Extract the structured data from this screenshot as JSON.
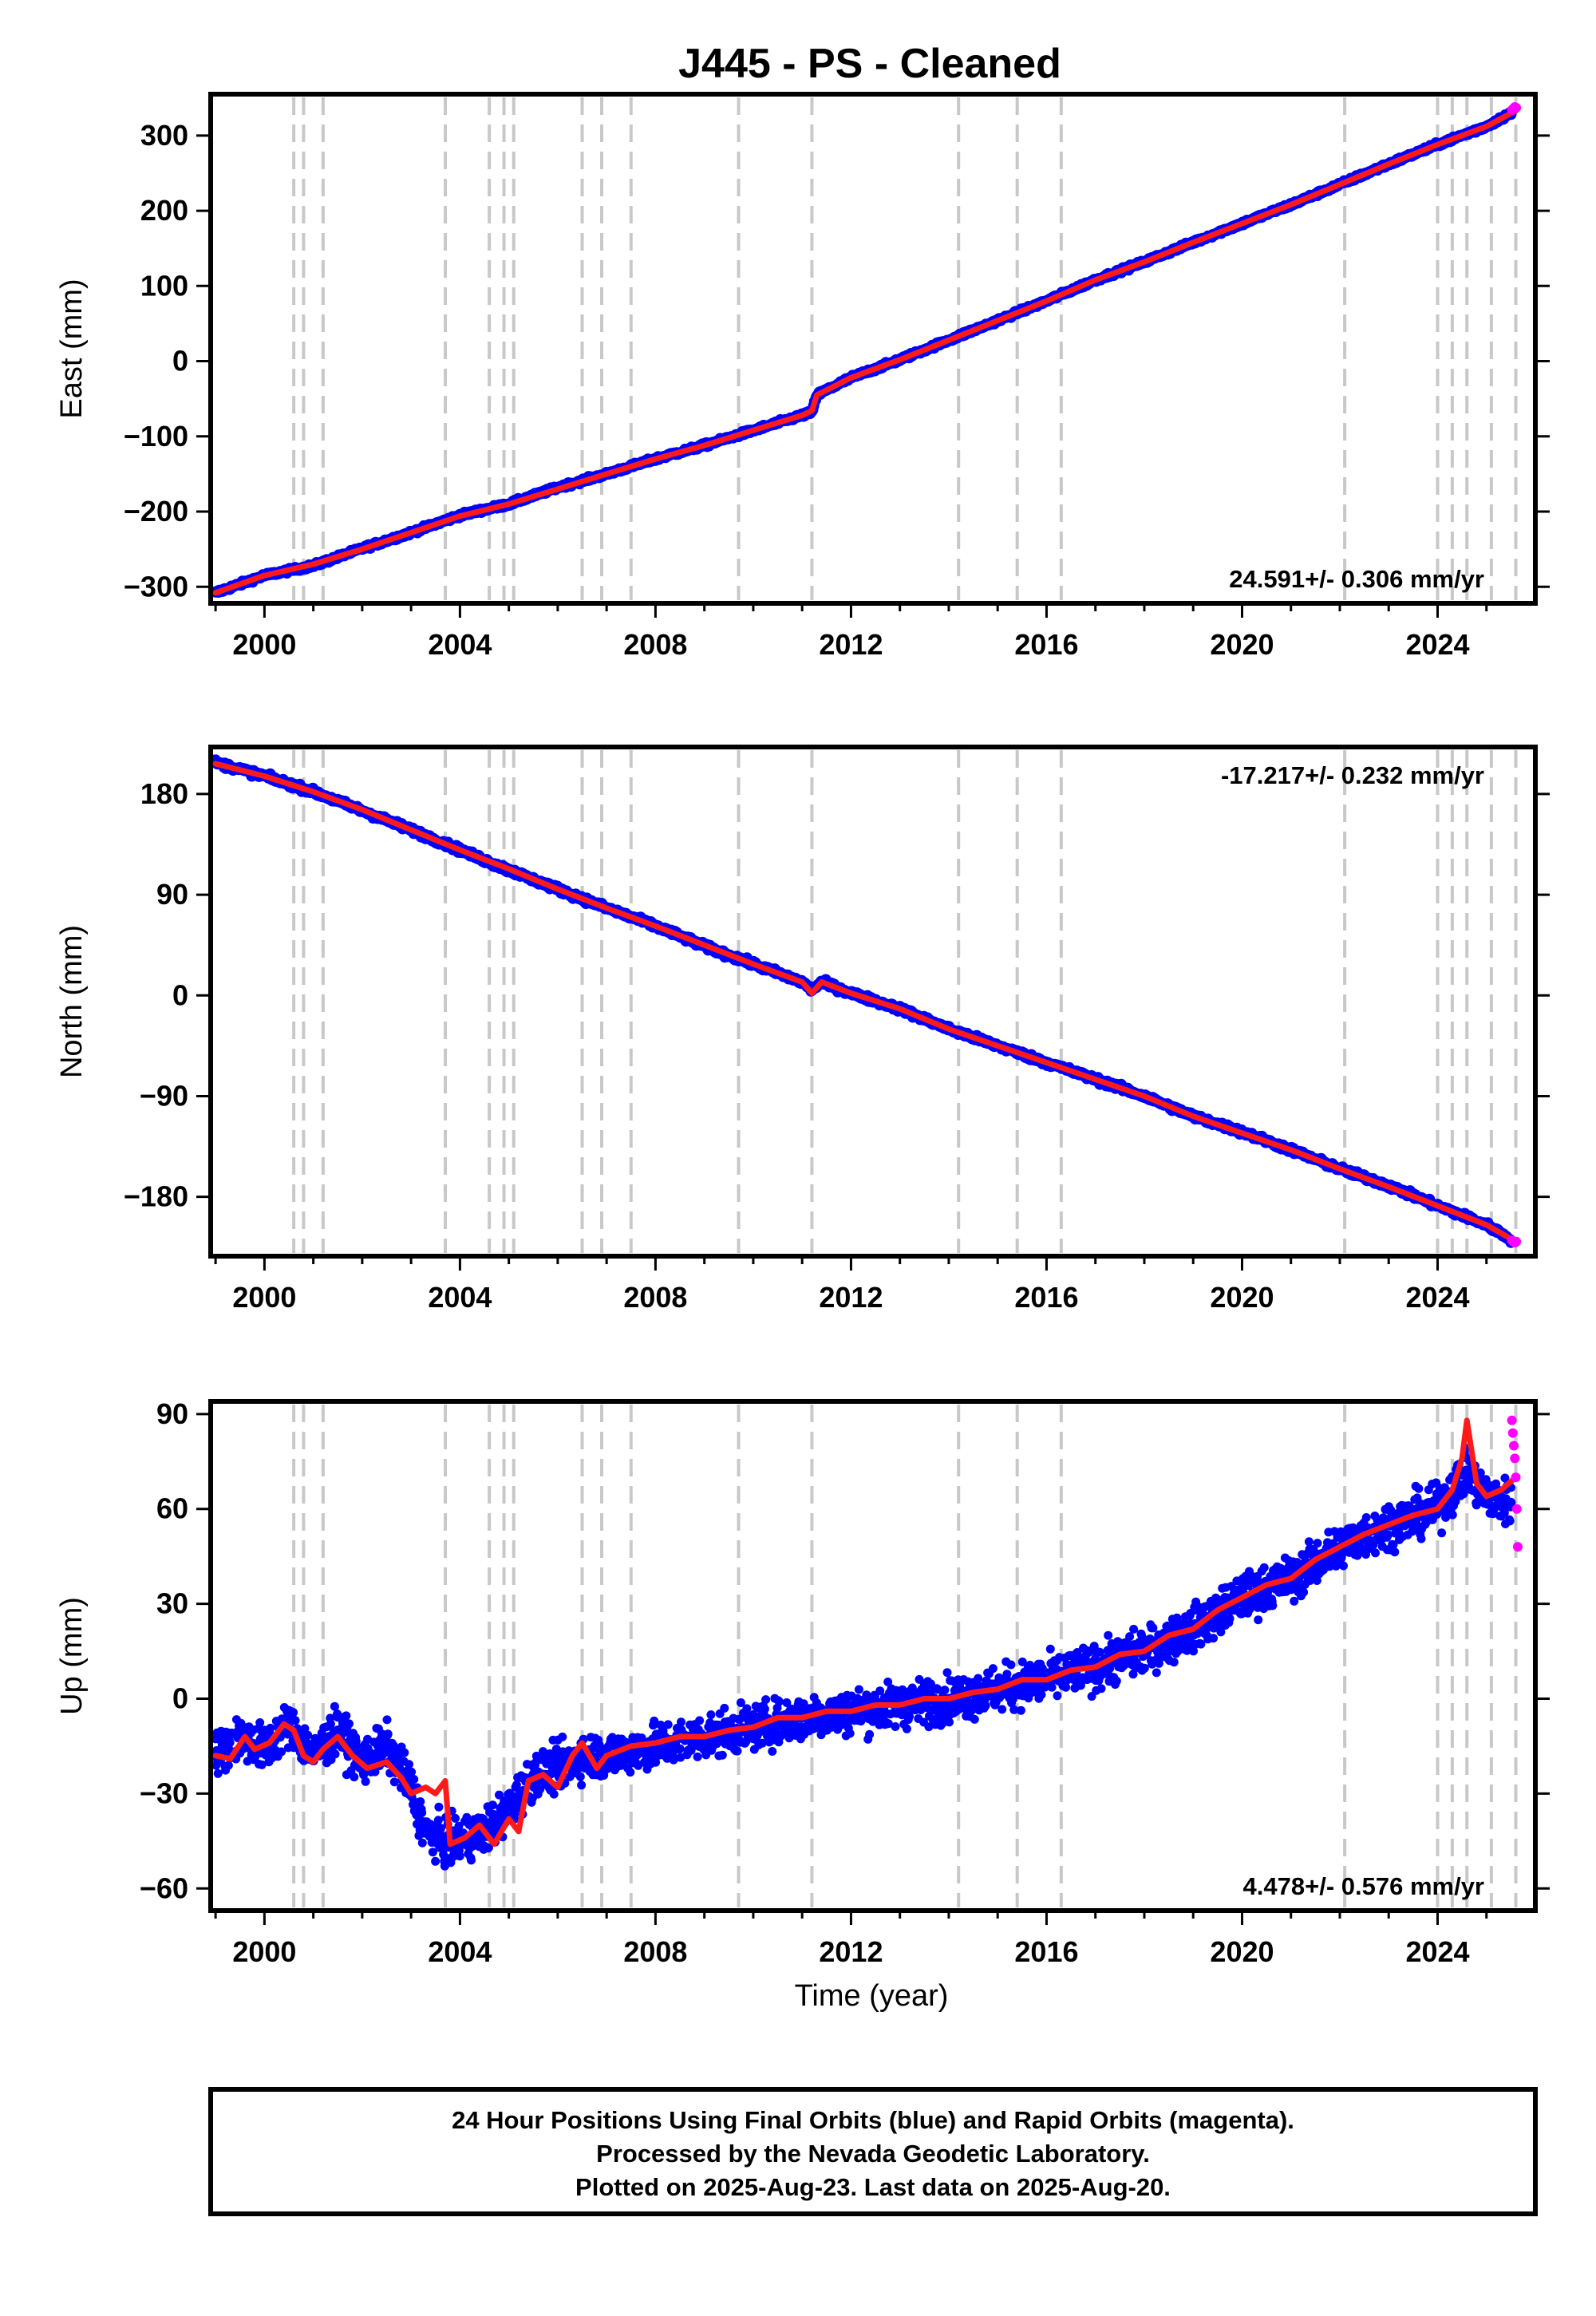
{
  "title": "J445  - PS - Cleaned",
  "colors": {
    "final_orbits": "#0000ff",
    "rapid_orbits": "#ff00ff",
    "model": "#ff0000",
    "event_lines": "#c8c8c8"
  },
  "footer": {
    "line1": "24 Hour Positions Using Final Orbits (blue) and Rapid Orbits (magenta).",
    "line2": "Processed by the Nevada Geodetic Laboratory.",
    "line3": "Plotted on 2025-Aug-23. Last data on 2025-Aug-20."
  },
  "chart_data": [
    {
      "type": "scatter",
      "component": "east",
      "ylabel": "East (mm)",
      "xlabel": "",
      "xlim": [
        1998.9,
        2026.0
      ],
      "ylim": [
        -322,
        355
      ],
      "xticks": [
        2000,
        2004,
        2008,
        2012,
        2016,
        2020,
        2024
      ],
      "yticks": [
        -300,
        -200,
        -100,
        0,
        100,
        200,
        300
      ],
      "ytick_labels": [
        "−300",
        "−200",
        "−100",
        "0",
        "100",
        "200",
        "300"
      ],
      "rate_label": "24.591+/- 0.306 mm/yr",
      "rate_position": "bottom-right",
      "event_lines": [
        2000.6,
        2000.8,
        2001.2,
        2003.7,
        2004.6,
        2004.9,
        2005.1,
        2006.5,
        2006.9,
        2007.5,
        2009.7,
        2011.2,
        2014.2,
        2015.4,
        2016.3,
        2022.1,
        2024.0,
        2024.3,
        2024.6,
        2025.1,
        2025.6
      ],
      "series": [
        {
          "name": "Final Orbits (blue)",
          "x": [
            1999.0,
            2000.0,
            2001.0,
            2002.0,
            2003.0,
            2004.0,
            2005.0,
            2006.0,
            2007.0,
            2008.0,
            2009.0,
            2010.0,
            2011.0,
            2011.2,
            2011.3,
            2012.0,
            2013.0,
            2014.0,
            2015.0,
            2016.0,
            2017.0,
            2018.0,
            2019.0,
            2020.0,
            2021.0,
            2022.0,
            2023.0,
            2024.0,
            2025.0,
            2025.5
          ],
          "values": [
            -308,
            -285,
            -272,
            -249,
            -228,
            -205,
            -190,
            -168,
            -150,
            -130,
            -112,
            -92,
            -72,
            -68,
            -45,
            -22,
            2,
            28,
            54,
            80,
            108,
            132,
            158,
            183,
            208,
            235,
            262,
            288,
            312,
            330
          ]
        },
        {
          "name": "Rapid Orbits (magenta)",
          "x": [
            2025.52,
            2025.55,
            2025.58,
            2025.61
          ],
          "values": [
            334,
            336,
            338,
            337
          ]
        }
      ],
      "model": {
        "x": [
          1999.0,
          2000.0,
          2001.0,
          2002.0,
          2003.0,
          2004.0,
          2005.0,
          2006.0,
          2007.0,
          2008.0,
          2009.0,
          2010.0,
          2011.0,
          2011.2,
          2011.3,
          2012.0,
          2013.0,
          2014.0,
          2015.0,
          2016.0,
          2017.0,
          2018.0,
          2019.0,
          2020.0,
          2021.0,
          2022.0,
          2023.0,
          2024.0,
          2025.0,
          2025.6
        ],
        "values": [
          -308,
          -285,
          -270,
          -250,
          -228,
          -206,
          -190,
          -170,
          -150,
          -130,
          -112,
          -92,
          -72,
          -66,
          -45,
          -22,
          2,
          28,
          54,
          80,
          108,
          132,
          158,
          183,
          208,
          235,
          262,
          288,
          312,
          333
        ]
      }
    },
    {
      "type": "scatter",
      "component": "north",
      "ylabel": "North (mm)",
      "xlabel": "",
      "xlim": [
        1998.9,
        2026.0
      ],
      "ylim": [
        -233,
        222
      ],
      "xticks": [
        2000,
        2004,
        2008,
        2012,
        2016,
        2020,
        2024
      ],
      "yticks": [
        -180,
        -90,
        0,
        90,
        180
      ],
      "ytick_labels": [
        "−180",
        "−90",
        "0",
        "90",
        "180"
      ],
      "rate_label": "-17.217+/- 0.232 mm/yr",
      "rate_position": "top-right",
      "event_lines": [
        2000.6,
        2000.8,
        2001.2,
        2003.7,
        2004.6,
        2004.9,
        2005.1,
        2006.5,
        2006.9,
        2007.5,
        2009.7,
        2011.2,
        2014.2,
        2015.4,
        2016.3,
        2022.1,
        2024.0,
        2024.3,
        2024.6,
        2025.1,
        2025.6
      ],
      "series": [
        {
          "name": "Final Orbits (blue)",
          "x": [
            1999.0,
            2000.0,
            2001.0,
            2002.0,
            2003.0,
            2004.0,
            2005.0,
            2006.0,
            2007.0,
            2008.0,
            2009.0,
            2010.0,
            2011.0,
            2011.2,
            2011.4,
            2012.0,
            2013.0,
            2014.0,
            2015.0,
            2016.0,
            2017.0,
            2018.0,
            2019.0,
            2020.0,
            2021.0,
            2022.0,
            2023.0,
            2024.0,
            2025.0,
            2025.5
          ],
          "values": [
            208,
            196,
            182,
            165,
            148,
            130,
            112,
            95,
            78,
            62,
            44,
            28,
            12,
            5,
            12,
            2,
            -12,
            -30,
            -45,
            -60,
            -75,
            -90,
            -108,
            -122,
            -138,
            -155,
            -170,
            -188,
            -205,
            -218
          ]
        },
        {
          "name": "Rapid Orbits (magenta)",
          "x": [
            2025.52,
            2025.55,
            2025.58,
            2025.61
          ],
          "values": [
            -219,
            -220,
            -221,
            -220
          ]
        }
      ],
      "model": {
        "x": [
          1999.0,
          2000.0,
          2001.0,
          2002.0,
          2003.0,
          2004.0,
          2005.0,
          2006.0,
          2007.0,
          2008.0,
          2009.0,
          2010.0,
          2011.0,
          2011.2,
          2011.4,
          2012.0,
          2013.0,
          2014.0,
          2015.0,
          2016.0,
          2017.0,
          2018.0,
          2019.0,
          2020.0,
          2021.0,
          2022.0,
          2023.0,
          2024.0,
          2025.0,
          2025.6
        ],
        "values": [
          207,
          196,
          182,
          166,
          148,
          130,
          113,
          95,
          78,
          62,
          45,
          28,
          12,
          2,
          12,
          2,
          -12,
          -30,
          -45,
          -60,
          -75,
          -90,
          -108,
          -123,
          -138,
          -155,
          -171,
          -188,
          -205,
          -220
        ]
      }
    },
    {
      "type": "scatter",
      "component": "up",
      "ylabel": "Up (mm)",
      "xlabel": "Time (year)",
      "xlim": [
        1998.9,
        2026.0
      ],
      "ylim": [
        -67,
        94
      ],
      "xticks": [
        2000,
        2004,
        2008,
        2012,
        2016,
        2020,
        2024
      ],
      "yticks": [
        -60,
        -30,
        0,
        30,
        60,
        90
      ],
      "ytick_labels": [
        "−60",
        "−30",
        "0",
        "30",
        "60",
        "90"
      ],
      "rate_label": "4.478+/- 0.576 mm/yr",
      "rate_position": "bottom-right",
      "event_lines": [
        2000.6,
        2000.8,
        2001.2,
        2003.7,
        2004.6,
        2004.9,
        2005.1,
        2006.5,
        2006.9,
        2007.5,
        2009.7,
        2011.2,
        2014.2,
        2015.4,
        2016.3,
        2022.1,
        2024.0,
        2024.3,
        2024.6,
        2025.1,
        2025.6
      ],
      "series": [
        {
          "name": "Final Orbits (blue)",
          "x": [
            1999.0,
            1999.5,
            2000.0,
            2000.5,
            2001.0,
            2001.5,
            2002.0,
            2002.5,
            2003.0,
            2003.3,
            2003.8,
            2004.5,
            2005.0,
            2005.5,
            2006.0,
            2006.5,
            2007.0,
            2008.0,
            2009.0,
            2010.0,
            2011.0,
            2012.0,
            2013.0,
            2014.0,
            2015.0,
            2016.0,
            2017.0,
            2018.0,
            2019.0,
            2020.0,
            2021.0,
            2022.0,
            2023.0,
            2024.0,
            2024.6,
            2025.0,
            2025.5
          ],
          "values": [
            -18,
            -12,
            -16,
            -8,
            -18,
            -10,
            -20,
            -15,
            -28,
            -42,
            -46,
            -42,
            -35,
            -24,
            -22,
            -18,
            -18,
            -15,
            -12,
            -9,
            -6,
            -4,
            -2,
            0,
            3,
            6,
            10,
            15,
            22,
            32,
            38,
            48,
            55,
            60,
            72,
            64,
            62
          ]
        },
        {
          "name": "Rapid Orbits (magenta)",
          "x": [
            2025.52,
            2025.54,
            2025.56,
            2025.58,
            2025.6,
            2025.62,
            2025.64
          ],
          "values": [
            88,
            84,
            80,
            76,
            70,
            60,
            48
          ]
        }
      ],
      "model": {
        "x": [
          1999.0,
          1999.3,
          1999.6,
          1999.8,
          2000.1,
          2000.4,
          2000.6,
          2000.8,
          2001.0,
          2001.2,
          2001.5,
          2001.8,
          2002.1,
          2002.5,
          2002.8,
          2003.0,
          2003.3,
          2003.5,
          2003.7,
          2003.8,
          2004.1,
          2004.4,
          2004.7,
          2005.0,
          2005.2,
          2005.4,
          2005.7,
          2006.0,
          2006.3,
          2006.5,
          2006.8,
          2007.0,
          2007.5,
          2008.0,
          2008.5,
          2009.0,
          2009.5,
          2010.0,
          2010.5,
          2011.0,
          2011.5,
          2012.0,
          2012.5,
          2013.0,
          2013.5,
          2014.0,
          2014.5,
          2015.0,
          2015.5,
          2016.0,
          2016.5,
          2017.0,
          2017.5,
          2018.0,
          2018.5,
          2019.0,
          2019.5,
          2020.0,
          2020.5,
          2021.0,
          2021.5,
          2022.0,
          2022.5,
          2023.0,
          2023.5,
          2024.0,
          2024.3,
          2024.5,
          2024.6,
          2024.8,
          2025.0,
          2025.3,
          2025.6
        ],
        "values": [
          -18,
          -19,
          -12,
          -16,
          -14,
          -8,
          -10,
          -18,
          -20,
          -16,
          -12,
          -18,
          -22,
          -20,
          -25,
          -30,
          -28,
          -30,
          -26,
          -46,
          -44,
          -40,
          -46,
          -38,
          -42,
          -26,
          -24,
          -28,
          -18,
          -14,
          -22,
          -18,
          -15,
          -14,
          -12,
          -12,
          -10,
          -9,
          -6,
          -6,
          -4,
          -4,
          -2,
          -2,
          0,
          0,
          2,
          3,
          6,
          6,
          9,
          10,
          14,
          15,
          20,
          22,
          28,
          32,
          36,
          38,
          44,
          48,
          52,
          55,
          58,
          60,
          66,
          76,
          88,
          68,
          64,
          66,
          70
        ]
      }
    }
  ]
}
